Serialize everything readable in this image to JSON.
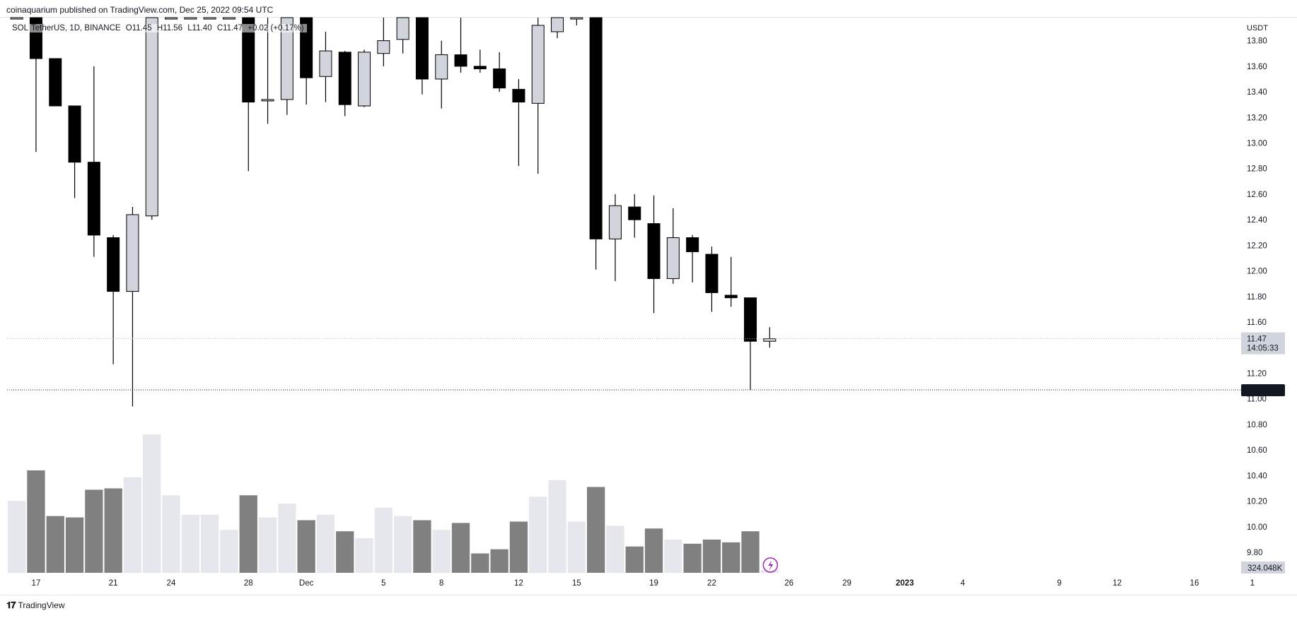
{
  "header": {
    "published_by": "coinaquarium published on TradingView.com, Dec 25, 2022 09:54 UTC"
  },
  "legend": {
    "symbol": "SOL",
    "pair_desc": "TetherUS, 1D, BINANCE",
    "open_label": "O11.45",
    "high_label": "H11.56",
    "low_label": "L11.40",
    "close_label": "C11.47",
    "change_label": "+0.02 (+0.17%)"
  },
  "currency": "USDT",
  "footer": {
    "brand": "TradingView"
  },
  "colors": {
    "up_body": "#d1d4dc",
    "down_body": "#000000",
    "vol_up": "#e6e7ec",
    "vol_down": "#808080",
    "grid": "#f0f3fa",
    "axis_text": "#131722",
    "lightning": "#9c27b0"
  },
  "chart_data": {
    "type": "candlestick",
    "title": "",
    "ylim": [
      9.64,
      13.98
    ],
    "price_ticks": [
      "13.80",
      "13.60",
      "13.40",
      "13.20",
      "13.00",
      "12.80",
      "12.60",
      "12.40",
      "12.20",
      "12.00",
      "11.80",
      "11.60",
      "11.20",
      "11.00",
      "10.80",
      "10.60",
      "10.40",
      "10.20",
      "10.00",
      "9.80"
    ],
    "date_ticks": [
      {
        "label": "17",
        "day_index": 1
      },
      {
        "label": "21",
        "day_index": 5
      },
      {
        "label": "24",
        "day_index": 8
      },
      {
        "label": "28",
        "day_index": 12
      },
      {
        "label": "Dec",
        "day_index": 15
      },
      {
        "label": "5",
        "day_index": 19
      },
      {
        "label": "8",
        "day_index": 22
      },
      {
        "label": "12",
        "day_index": 26
      },
      {
        "label": "15",
        "day_index": 29
      },
      {
        "label": "19",
        "day_index": 33
      },
      {
        "label": "22",
        "day_index": 36
      },
      {
        "label": "26",
        "day_index": 40
      },
      {
        "label": "29",
        "day_index": 43
      },
      {
        "label": "2023",
        "day_index": 46
      },
      {
        "label": "4",
        "day_index": 49
      },
      {
        "label": "9",
        "day_index": 54
      },
      {
        "label": "12",
        "day_index": 57
      },
      {
        "label": "16",
        "day_index": 61
      },
      {
        "label": "1",
        "day_index": 64
      }
    ],
    "current_price": "11.47",
    "countdown": "14:05:33",
    "low_marker": "11.07",
    "low_marker_value": 11.07,
    "volume_label": "324.048K",
    "candles": [
      {
        "o": 13.98,
        "h": 13.98,
        "l": 13.98,
        "c": 13.98,
        "v": 0.52
      },
      {
        "o": 13.98,
        "h": 13.98,
        "l": 12.93,
        "c": 13.66,
        "v": 0.74
      },
      {
        "o": 13.66,
        "h": 13.66,
        "l": 13.3,
        "c": 13.29,
        "v": 0.41
      },
      {
        "o": 13.29,
        "h": 13.29,
        "l": 12.57,
        "c": 12.85,
        "v": 0.4
      },
      {
        "o": 12.85,
        "h": 13.6,
        "l": 12.11,
        "c": 12.28,
        "v": 0.6
      },
      {
        "o": 12.26,
        "h": 12.28,
        "l": 11.27,
        "c": 11.84,
        "v": 0.61
      },
      {
        "o": 11.84,
        "h": 12.5,
        "l": 10.94,
        "c": 12.44,
        "v": 0.69
      },
      {
        "o": 12.43,
        "h": 13.98,
        "l": 12.4,
        "c": 13.98,
        "v": 1.0
      },
      {
        "o": 13.98,
        "h": 13.98,
        "l": 13.98,
        "c": 13.98,
        "v": 0.56
      },
      {
        "o": 13.98,
        "h": 13.98,
        "l": 13.98,
        "c": 13.98,
        "v": 0.42
      },
      {
        "o": 13.98,
        "h": 13.98,
        "l": 13.98,
        "c": 13.98,
        "v": 0.42
      },
      {
        "o": 13.98,
        "h": 13.98,
        "l": 13.98,
        "c": 13.98,
        "v": 0.31
      },
      {
        "o": 13.98,
        "h": 13.98,
        "l": 12.78,
        "c": 13.32,
        "v": 0.56
      },
      {
        "o": 13.33,
        "h": 13.98,
        "l": 13.15,
        "c": 13.34,
        "v": 0.4
      },
      {
        "o": 13.34,
        "h": 13.98,
        "l": 13.22,
        "c": 13.98,
        "v": 0.5
      },
      {
        "o": 13.98,
        "h": 13.98,
        "l": 13.3,
        "c": 13.51,
        "v": 0.38
      },
      {
        "o": 13.52,
        "h": 13.87,
        "l": 13.32,
        "c": 13.72,
        "v": 0.42
      },
      {
        "o": 13.71,
        "h": 13.72,
        "l": 13.21,
        "c": 13.3,
        "v": 0.3
      },
      {
        "o": 13.29,
        "h": 13.73,
        "l": 13.28,
        "c": 13.71,
        "v": 0.25
      },
      {
        "o": 13.7,
        "h": 13.98,
        "l": 13.6,
        "c": 13.8,
        "v": 0.47
      },
      {
        "o": 13.81,
        "h": 13.98,
        "l": 13.7,
        "c": 13.98,
        "v": 0.41
      },
      {
        "o": 13.98,
        "h": 13.98,
        "l": 13.38,
        "c": 13.5,
        "v": 0.38
      },
      {
        "o": 13.5,
        "h": 13.8,
        "l": 13.27,
        "c": 13.69,
        "v": 0.31
      },
      {
        "o": 13.69,
        "h": 13.98,
        "l": 13.55,
        "c": 13.6,
        "v": 0.36
      },
      {
        "o": 13.6,
        "h": 13.73,
        "l": 13.55,
        "c": 13.58,
        "v": 0.14
      },
      {
        "o": 13.58,
        "h": 13.71,
        "l": 13.4,
        "c": 13.43,
        "v": 0.17
      },
      {
        "o": 13.42,
        "h": 13.5,
        "l": 12.82,
        "c": 13.32,
        "v": 0.37
      },
      {
        "o": 13.31,
        "h": 13.98,
        "l": 12.76,
        "c": 13.92,
        "v": 0.55
      },
      {
        "o": 13.87,
        "h": 13.98,
        "l": 13.82,
        "c": 13.98,
        "v": 0.67
      },
      {
        "o": 13.98,
        "h": 13.98,
        "l": 13.92,
        "c": 13.98,
        "v": 0.37
      },
      {
        "o": 13.98,
        "h": 13.98,
        "l": 12.01,
        "c": 12.25,
        "v": 0.62
      },
      {
        "o": 12.25,
        "h": 12.6,
        "l": 11.92,
        "c": 12.51,
        "v": 0.34
      },
      {
        "o": 12.5,
        "h": 12.6,
        "l": 12.26,
        "c": 12.4,
        "v": 0.19
      },
      {
        "o": 12.37,
        "h": 12.59,
        "l": 11.67,
        "c": 11.94,
        "v": 0.32
      },
      {
        "o": 11.94,
        "h": 12.49,
        "l": 11.9,
        "c": 12.26,
        "v": 0.24
      },
      {
        "o": 12.26,
        "h": 12.28,
        "l": 11.91,
        "c": 12.15,
        "v": 0.21
      },
      {
        "o": 12.13,
        "h": 12.19,
        "l": 11.68,
        "c": 11.83,
        "v": 0.24
      },
      {
        "o": 11.81,
        "h": 12.11,
        "l": 11.72,
        "c": 11.79,
        "v": 0.22
      },
      {
        "o": 11.79,
        "h": 11.79,
        "l": 11.07,
        "c": 11.45,
        "v": 0.3
      },
      {
        "o": 11.45,
        "h": 11.56,
        "l": 11.4,
        "c": 11.47,
        "v": 0.02
      }
    ]
  }
}
